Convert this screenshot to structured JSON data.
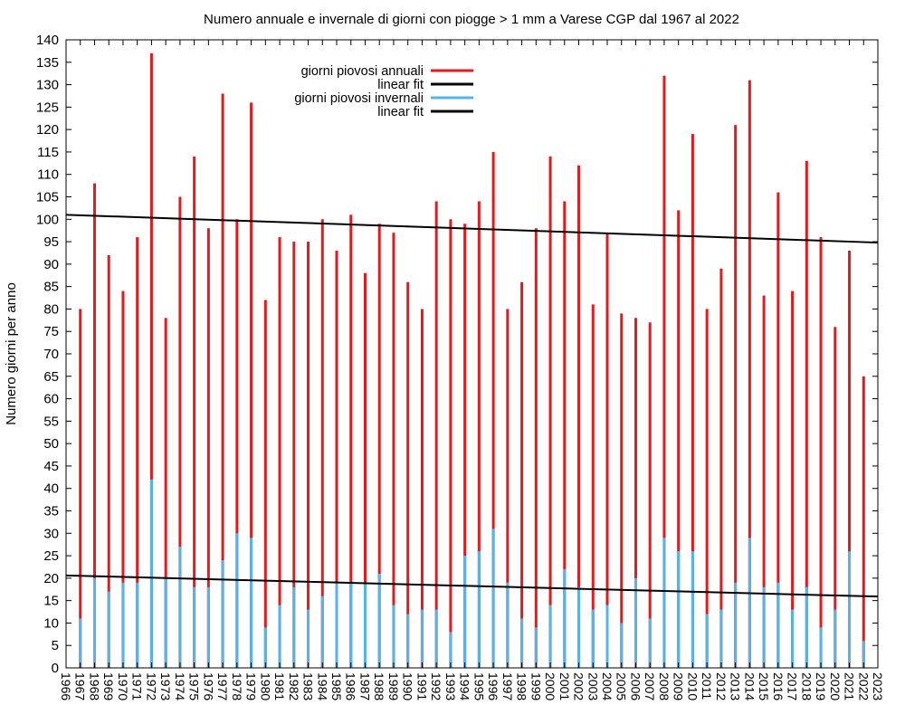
{
  "chart_data": {
    "type": "bar",
    "title": "Numero annuale e invernale di giorni con piogge > 1 mm a Varese CGP dal 1967 al 2022",
    "xlabel": "",
    "ylabel": "Numero giorni per anno",
    "xlim": [
      1966,
      2023
    ],
    "ylim": [
      0,
      140
    ],
    "y_tick_step": 5,
    "grid": false,
    "legend_position": "top-center",
    "x": [
      1967,
      1968,
      1969,
      1970,
      1971,
      1972,
      1973,
      1974,
      1975,
      1976,
      1977,
      1978,
      1979,
      1980,
      1981,
      1982,
      1983,
      1984,
      1985,
      1986,
      1987,
      1988,
      1989,
      1990,
      1991,
      1992,
      1993,
      1994,
      1995,
      1996,
      1997,
      1998,
      1999,
      2000,
      2001,
      2002,
      2003,
      2004,
      2005,
      2006,
      2007,
      2008,
      2009,
      2010,
      2011,
      2012,
      2013,
      2014,
      2015,
      2016,
      2017,
      2018,
      2019,
      2020,
      2021,
      2022
    ],
    "x_ticks": [
      1966,
      1967,
      1968,
      1969,
      1970,
      1971,
      1972,
      1973,
      1974,
      1975,
      1976,
      1977,
      1978,
      1979,
      1980,
      1981,
      1982,
      1983,
      1984,
      1985,
      1986,
      1987,
      1988,
      1989,
      1990,
      1991,
      1992,
      1993,
      1994,
      1995,
      1996,
      1997,
      1998,
      1999,
      2000,
      2001,
      2002,
      2003,
      2004,
      2005,
      2006,
      2007,
      2008,
      2009,
      2010,
      2011,
      2012,
      2013,
      2014,
      2015,
      2016,
      2017,
      2018,
      2019,
      2020,
      2021,
      2022,
      2023
    ],
    "series": [
      {
        "name": "giorni piovosi annuali",
        "color": "#e41a1c",
        "values": [
          80,
          108,
          92,
          84,
          96,
          137,
          78,
          105,
          114,
          98,
          128,
          100,
          126,
          82,
          96,
          95,
          95,
          100,
          93,
          101,
          88,
          99,
          97,
          86,
          80,
          104,
          100,
          99,
          104,
          115,
          80,
          86,
          98,
          114,
          104,
          112,
          81,
          97,
          79,
          78,
          77,
          132,
          102,
          119,
          80,
          89,
          121,
          131,
          83,
          106,
          84,
          113,
          96,
          76,
          93,
          65
        ]
      },
      {
        "name": "giorni piovosi invernali",
        "color": "#56b4e9",
        "values": [
          11,
          20,
          17,
          19,
          19,
          42,
          20,
          27,
          18,
          18,
          24,
          30,
          29,
          9,
          14,
          18,
          13,
          16,
          19,
          19,
          19,
          21,
          14,
          12,
          13,
          13,
          8,
          25,
          26,
          31,
          19,
          11,
          9,
          14,
          22,
          18,
          13,
          14,
          10,
          20,
          11,
          29,
          26,
          26,
          12,
          13,
          19,
          29,
          18,
          19,
          13,
          18,
          9,
          13,
          26,
          6
        ]
      }
    ],
    "fits": [
      {
        "name": "linear fit",
        "color": "#000000",
        "start": [
          1966,
          101
        ],
        "end": [
          2023,
          94.8
        ]
      },
      {
        "name": "linear fit",
        "color": "#000000",
        "start": [
          1966,
          20.6
        ],
        "end": [
          2023,
          15.9
        ]
      }
    ]
  }
}
